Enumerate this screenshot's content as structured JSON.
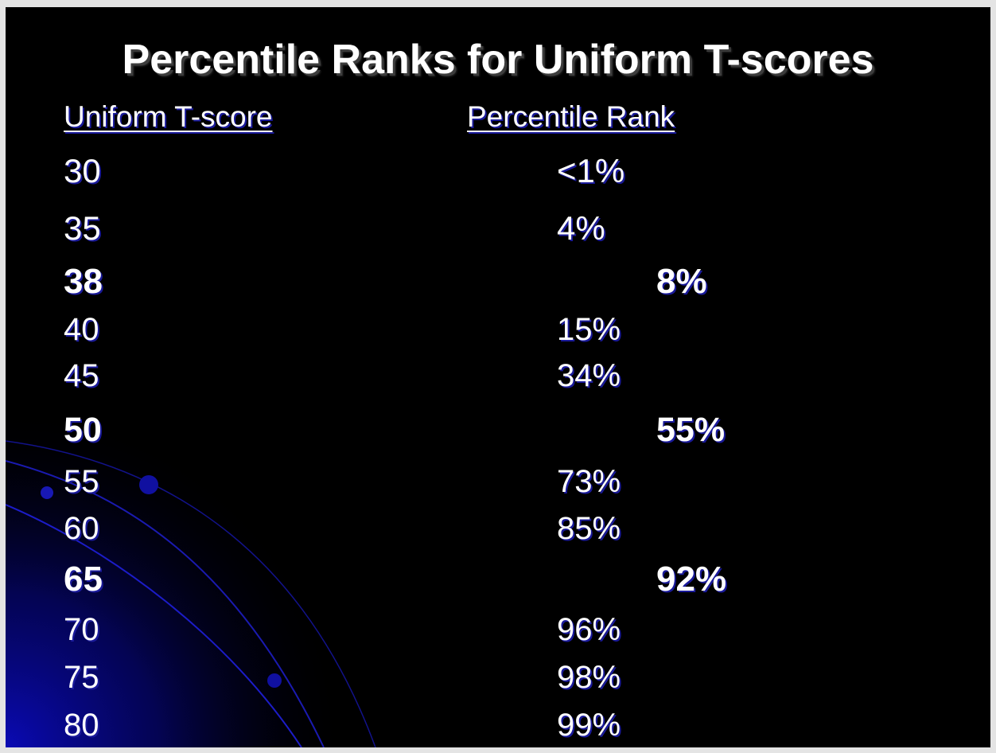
{
  "title": "Percentile Ranks for Uniform T-scores",
  "headers": {
    "score": "Uniform T-score",
    "rank": "Percentile Rank"
  },
  "rows": [
    {
      "score": "30",
      "rank": "<1%",
      "emphasis": false
    },
    {
      "score": "35",
      "rank": "4%",
      "emphasis": false
    },
    {
      "score": "38",
      "rank": "8%",
      "emphasis": true
    },
    {
      "score": "40",
      "rank": "15%",
      "emphasis": false
    },
    {
      "score": "45",
      "rank": "34%",
      "emphasis": false
    },
    {
      "score": "50",
      "rank": "55%",
      "emphasis": true
    },
    {
      "score": "55",
      "rank": "73%",
      "emphasis": false
    },
    {
      "score": "60",
      "rank": "85%",
      "emphasis": false
    },
    {
      "score": "65",
      "rank": "92%",
      "emphasis": true
    },
    {
      "score": "70",
      "rank": "96%",
      "emphasis": false
    },
    {
      "score": "75",
      "rank": "98%",
      "emphasis": false
    },
    {
      "score": "80",
      "rank": "99%",
      "emphasis": false
    }
  ],
  "colors": {
    "background": "#000000",
    "text": "#ffffff",
    "accent": "#0a0ab4"
  }
}
